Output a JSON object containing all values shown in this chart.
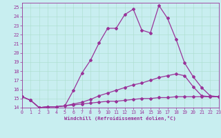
{
  "xlabel": "Windchill (Refroidissement éolien,°C)",
  "bg_color": "#c8eef0",
  "line_color": "#993399",
  "grid_color": "#aaddcc",
  "xlim": [
    0,
    23
  ],
  "ylim": [
    14,
    25.5
  ],
  "yticks": [
    14,
    15,
    16,
    17,
    18,
    19,
    20,
    21,
    22,
    23,
    24,
    25
  ],
  "xticks": [
    0,
    1,
    2,
    3,
    4,
    5,
    6,
    7,
    8,
    9,
    10,
    11,
    12,
    13,
    14,
    15,
    16,
    17,
    18,
    19,
    20,
    21,
    22,
    23
  ],
  "line1_x": [
    0,
    1,
    2,
    3,
    4,
    5,
    6,
    7,
    8,
    9,
    10,
    11,
    12,
    13,
    14,
    15,
    16,
    17,
    18,
    19,
    20,
    21,
    22,
    23
  ],
  "line1_y": [
    15.2,
    14.8,
    14.0,
    14.1,
    14.1,
    14.2,
    15.9,
    17.8,
    19.2,
    21.1,
    22.7,
    22.7,
    24.2,
    24.8,
    22.5,
    22.2,
    25.2,
    23.8,
    21.5,
    18.9,
    17.4,
    16.2,
    15.3,
    15.2
  ],
  "line2_x": [
    0,
    1,
    2,
    3,
    4,
    5,
    6,
    7,
    8,
    9,
    10,
    11,
    12,
    13,
    14,
    15,
    16,
    17,
    18,
    19,
    20,
    21,
    22,
    23
  ],
  "line2_y": [
    15.2,
    14.8,
    14.0,
    14.1,
    14.1,
    14.2,
    14.4,
    14.6,
    14.9,
    15.3,
    15.6,
    15.9,
    16.2,
    16.5,
    16.7,
    17.0,
    17.3,
    17.5,
    17.7,
    17.5,
    16.3,
    15.3,
    15.2,
    15.2
  ],
  "line3_x": [
    0,
    1,
    2,
    3,
    4,
    5,
    6,
    7,
    8,
    9,
    10,
    11,
    12,
    13,
    14,
    15,
    16,
    17,
    18,
    19,
    20,
    21,
    22,
    23
  ],
  "line3_y": [
    15.2,
    14.8,
    14.0,
    14.1,
    14.1,
    14.2,
    14.3,
    14.4,
    14.5,
    14.6,
    14.7,
    14.7,
    14.8,
    14.9,
    15.0,
    15.0,
    15.1,
    15.1,
    15.2,
    15.2,
    15.2,
    15.2,
    15.2,
    15.2
  ],
  "marker": "D",
  "markersize": 2,
  "linewidth": 0.9
}
